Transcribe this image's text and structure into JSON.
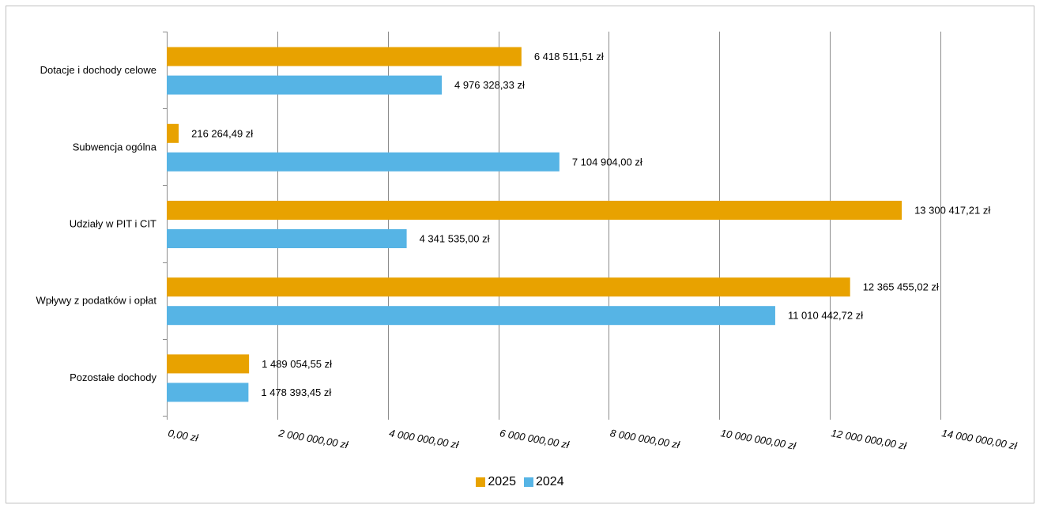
{
  "chart_data": {
    "type": "bar",
    "orientation": "horizontal",
    "categories": [
      "Dotacje i dochody celowe",
      "Subwencja ogólna",
      "Udziały w PIT i CIT",
      "Wpływy z podatków i opłat",
      "Pozostałe dochody"
    ],
    "series": [
      {
        "name": "2025",
        "color": "#e8a200",
        "values": [
          6418511.51,
          216264.49,
          13300417.21,
          12365455.02,
          1489054.55
        ],
        "labels": [
          "6 418 511,51 zł",
          "216 264,49 zł",
          "13 300 417,21 zł",
          "12 365 455,02 zł",
          "1 489 054,55 zł"
        ]
      },
      {
        "name": "2024",
        "color": "#56b4e5",
        "values": [
          4976328.33,
          7104904.0,
          4341535.0,
          11010442.72,
          1478393.45
        ],
        "labels": [
          "4 976 328,33 zł",
          "7 104 904,00 zł",
          "4 341 535,00 zł",
          "11 010 442,72 zł",
          "1 478 393,45 zł"
        ]
      }
    ],
    "xlim": [
      0,
      14000000
    ],
    "xticks": [
      0,
      2000000,
      4000000,
      6000000,
      8000000,
      10000000,
      12000000,
      14000000
    ],
    "xtick_labels": [
      "0,00 zł",
      "2 000 000,00 zł",
      "4 000 000,00 zł",
      "6 000 000,00 zł",
      "8 000 000,00 zł",
      "10 000 000,00 zł",
      "12 000 000,00 zł",
      "14 000 000,00 zł"
    ],
    "grid": true,
    "legend_position": "bottom",
    "title": "",
    "xlabel": "",
    "ylabel": ""
  }
}
